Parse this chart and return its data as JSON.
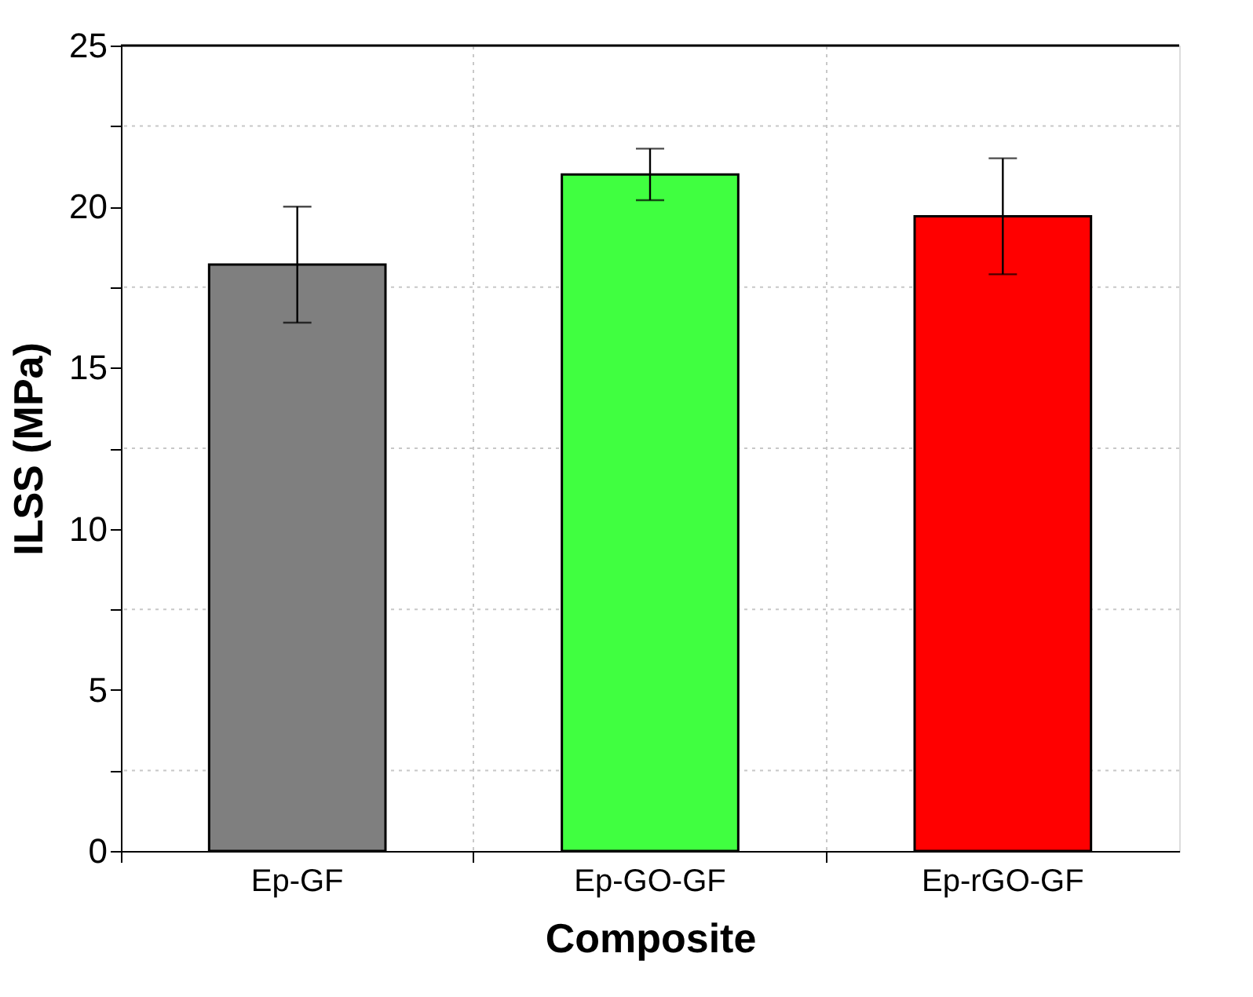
{
  "chart_data": {
    "type": "bar",
    "xlabel": "Composite",
    "ylabel": "ILSS (MPa)",
    "categories": [
      "Ep-GF",
      "Ep-GO-GF",
      "Ep-rGO-GF"
    ],
    "values": [
      18.2,
      21.0,
      19.7
    ],
    "colors": [
      "#7f7f7f",
      "#40ff40",
      "#ff0000"
    ],
    "errors": [
      [
        16.4,
        20.0
      ],
      [
        20.2,
        21.8
      ],
      [
        17.9,
        21.5
      ]
    ],
    "ylim": [
      0,
      25
    ],
    "yticks": [
      0,
      {
        "value": 2.5,
        "label": null
      },
      5,
      {
        "value": 7.5,
        "label": null
      },
      10,
      {
        "value": 12.5,
        "label": null
      },
      15,
      {
        "value": 17.5,
        "label": null
      },
      20,
      {
        "value": 22.5,
        "label": null
      },
      25
    ],
    "grid": true
  }
}
